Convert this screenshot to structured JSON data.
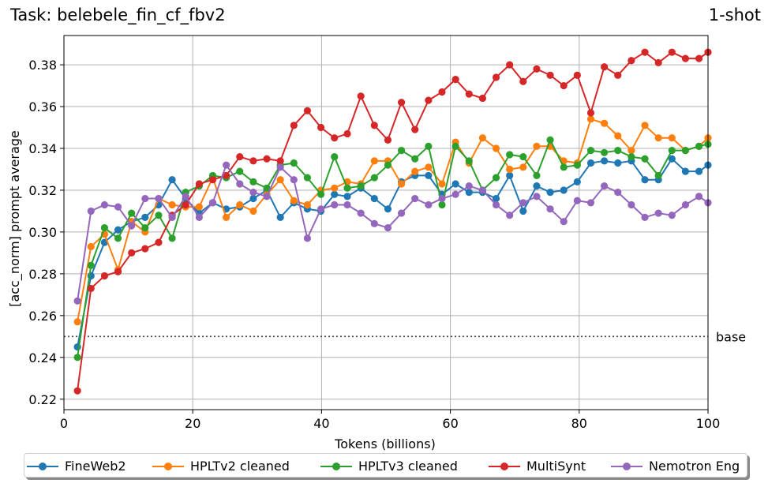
{
  "chart_data": {
    "type": "line",
    "title": "Task: belebele_fin_cf_fbv2",
    "subtitle": "1-shot",
    "xlabel": "Tokens (billions)",
    "ylabel": "[acc_norm] prompt average",
    "xlim": [
      0,
      100
    ],
    "ylim": [
      0.215,
      0.394
    ],
    "xticks": [
      0,
      20,
      40,
      60,
      80,
      100
    ],
    "yticks": [
      0.22,
      0.24,
      0.26,
      0.28,
      0.3,
      0.32,
      0.34,
      0.36,
      0.38
    ],
    "grid": true,
    "legend_position": "bottom",
    "baseline": {
      "value": 0.25,
      "label": "base",
      "style": "dotted"
    },
    "x": [
      2.1,
      4.2,
      6.3,
      8.4,
      10.5,
      12.6,
      14.7,
      16.8,
      18.9,
      21.0,
      23.1,
      25.2,
      27.3,
      29.4,
      31.5,
      33.6,
      35.7,
      37.8,
      39.9,
      42.0,
      44.0,
      46.1,
      48.2,
      50.3,
      52.4,
      54.5,
      56.6,
      58.7,
      60.8,
      62.9,
      65.0,
      67.1,
      69.2,
      71.3,
      73.4,
      75.5,
      77.6,
      79.7,
      81.8,
      83.9,
      86.0,
      88.1,
      90.2,
      92.3,
      94.4,
      96.5,
      98.6,
      100.0
    ],
    "series": [
      {
        "name": "FineWeb2",
        "color": "#1f77b4",
        "values": [
          0.245,
          0.279,
          0.295,
          0.301,
          0.305,
          0.307,
          0.313,
          0.325,
          0.316,
          0.309,
          0.314,
          0.311,
          0.312,
          0.316,
          0.32,
          0.307,
          0.314,
          0.311,
          0.31,
          0.318,
          0.317,
          0.321,
          0.316,
          0.311,
          0.324,
          0.327,
          0.327,
          0.318,
          0.323,
          0.319,
          0.319,
          0.316,
          0.327,
          0.31,
          0.322,
          0.319,
          0.32,
          0.324,
          0.333,
          0.334,
          0.333,
          0.334,
          0.325,
          0.325,
          0.335,
          0.329,
          0.329,
          0.332
        ]
      },
      {
        "name": "HPLTv2 cleaned",
        "color": "#ff7f0e",
        "values": [
          0.257,
          0.293,
          0.299,
          0.282,
          0.305,
          0.3,
          0.316,
          0.313,
          0.312,
          0.312,
          0.326,
          0.307,
          0.313,
          0.31,
          0.318,
          0.325,
          0.315,
          0.313,
          0.32,
          0.321,
          0.324,
          0.323,
          0.334,
          0.334,
          0.323,
          0.329,
          0.331,
          0.323,
          0.343,
          0.333,
          0.345,
          0.34,
          0.33,
          0.331,
          0.341,
          0.341,
          0.334,
          0.333,
          0.354,
          0.352,
          0.346,
          0.339,
          0.351,
          0.345,
          0.345,
          0.339,
          0.341,
          0.345
        ]
      },
      {
        "name": "HPLTv3 cleaned",
        "color": "#2ca02c",
        "values": [
          0.24,
          0.284,
          0.302,
          0.297,
          0.309,
          0.302,
          0.308,
          0.297,
          0.319,
          0.322,
          0.327,
          0.326,
          0.329,
          0.324,
          0.321,
          0.332,
          0.333,
          0.326,
          0.318,
          0.336,
          0.321,
          0.322,
          0.326,
          0.332,
          0.339,
          0.335,
          0.341,
          0.313,
          0.341,
          0.334,
          0.32,
          0.326,
          0.337,
          0.336,
          0.327,
          0.344,
          0.331,
          0.332,
          0.339,
          0.338,
          0.339,
          0.336,
          0.335,
          0.327,
          0.339,
          0.339,
          0.341,
          0.342
        ]
      },
      {
        "name": "MultiSynt",
        "color": "#d62728",
        "values": [
          0.224,
          0.273,
          0.279,
          0.281,
          0.29,
          0.292,
          0.295,
          0.308,
          0.313,
          0.323,
          0.325,
          0.327,
          0.336,
          0.334,
          0.335,
          0.334,
          0.351,
          0.358,
          0.35,
          0.345,
          0.347,
          0.365,
          0.351,
          0.344,
          0.362,
          0.349,
          0.363,
          0.367,
          0.373,
          0.366,
          0.364,
          0.374,
          0.38,
          0.372,
          0.378,
          0.375,
          0.37,
          0.375,
          0.357,
          0.379,
          0.375,
          0.382,
          0.386,
          0.381,
          0.386,
          0.383,
          0.383,
          0.386
        ]
      },
      {
        "name": "Nemotron Eng",
        "color": "#9467bd",
        "values": [
          0.267,
          0.31,
          0.313,
          0.312,
          0.303,
          0.316,
          0.316,
          0.307,
          0.317,
          0.307,
          0.314,
          0.332,
          0.323,
          0.319,
          0.317,
          0.331,
          0.325,
          0.297,
          0.311,
          0.313,
          0.313,
          0.309,
          0.304,
          0.302,
          0.309,
          0.316,
          0.313,
          0.316,
          0.318,
          0.322,
          0.32,
          0.313,
          0.308,
          0.314,
          0.317,
          0.311,
          0.305,
          0.315,
          0.314,
          0.322,
          0.319,
          0.313,
          0.307,
          0.309,
          0.308,
          0.313,
          0.317,
          0.314
        ]
      }
    ]
  }
}
